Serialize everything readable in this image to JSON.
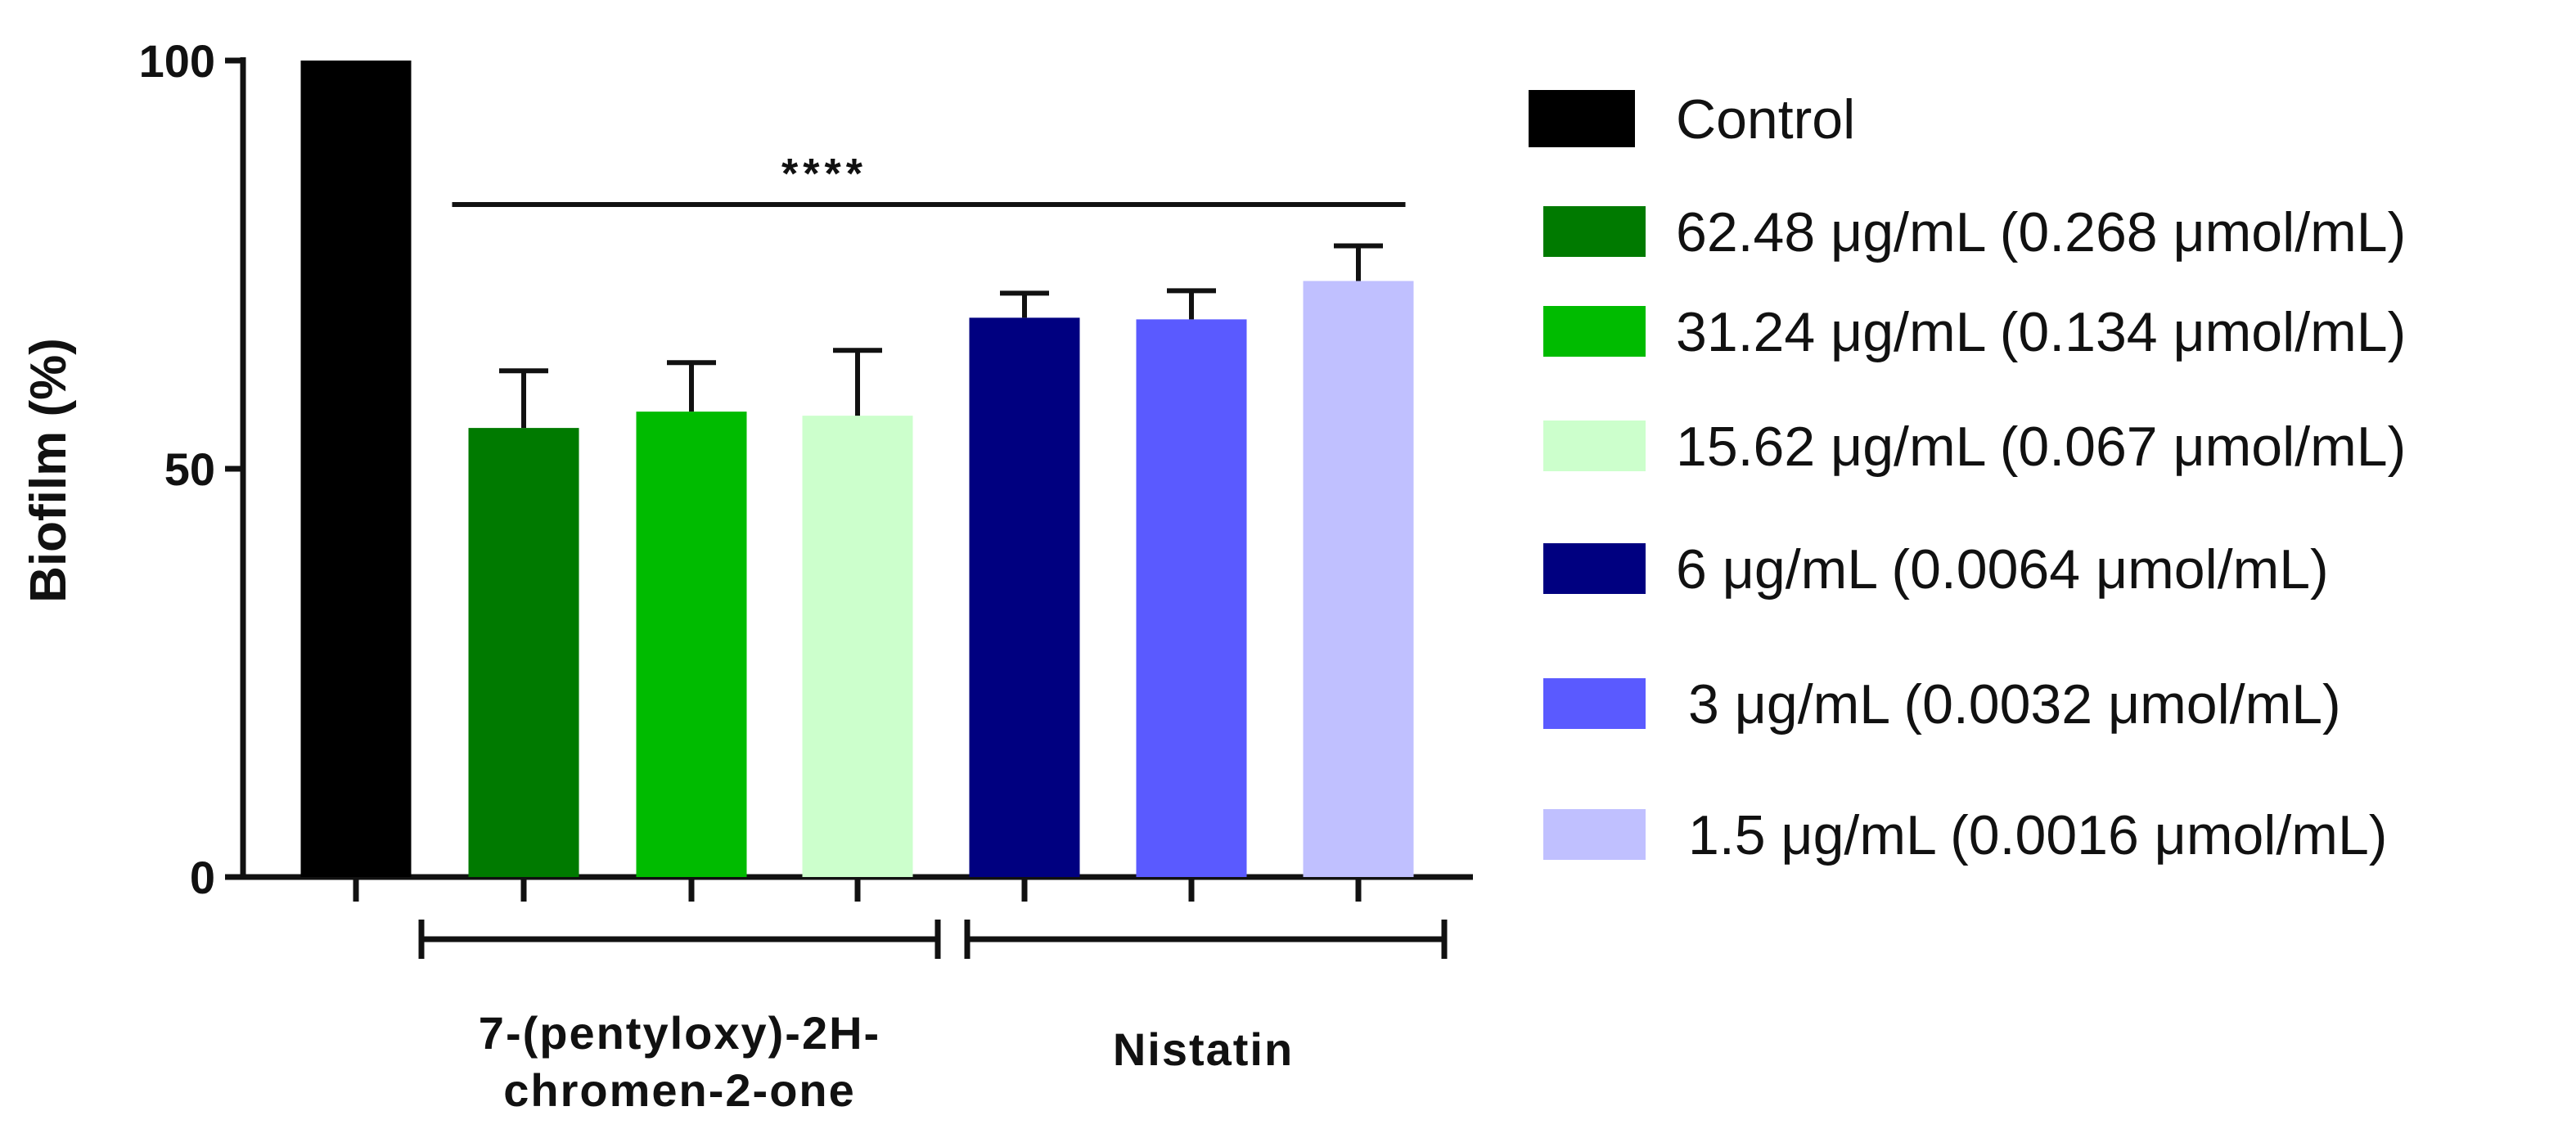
{
  "chart_data": {
    "type": "bar",
    "title": "",
    "xlabel": "",
    "ylabel": "Biofilm (%)",
    "ylim": [
      0,
      100
    ],
    "yticks": [
      "0",
      "50",
      "100"
    ],
    "grid": false,
    "legend_position": "right",
    "categories": [
      "Control",
      "62.48 μg/mL (0.268 μmol/mL)",
      "31.24 μg/mL (0.134 μmol/mL)",
      "15.62 μg/mL (0.067 μmol/mL)",
      "6 μg/mL (0.0064 μmol/mL)",
      "3 μg/mL (0.0032 μmol/mL)",
      "1.5 μg/mL (0.0016 μmol/mL)"
    ],
    "values": [
      100,
      55,
      57,
      56.5,
      68.5,
      68.3,
      73
    ],
    "errors": [
      0,
      7,
      6,
      8,
      3,
      3.5,
      4.3
    ],
    "colors": [
      "#000000",
      "#007a00",
      "#00bb00",
      "#ccffcc",
      "#000080",
      "#5a5aff",
      "#c0c0ff"
    ],
    "group_labels": [
      {
        "lines": [
          "7-(pentyloxy)-2H-",
          "chromen-2-one"
        ],
        "members": [
          1,
          3
        ]
      },
      {
        "lines": [
          "Nistatin"
        ],
        "members": [
          4,
          6
        ]
      }
    ],
    "significance": {
      "label": "****",
      "from": 1,
      "to": 6
    }
  }
}
